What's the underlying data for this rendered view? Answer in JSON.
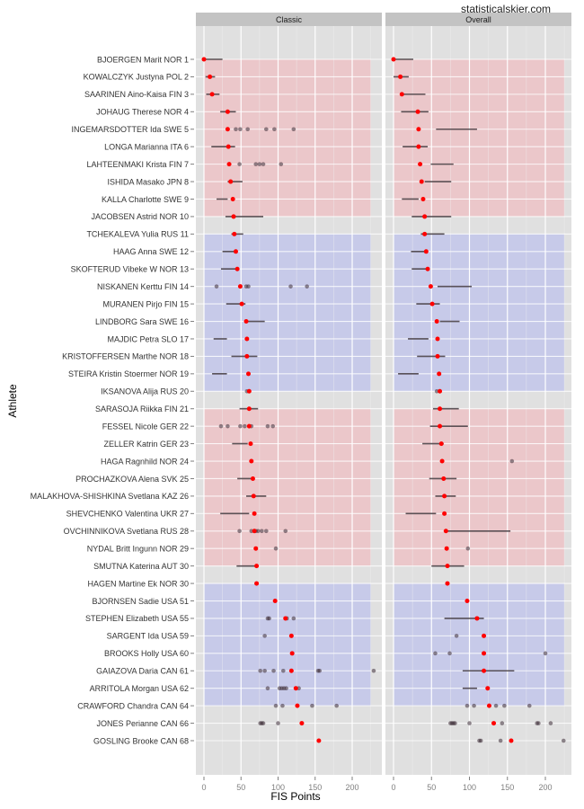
{
  "watermark": "statisticalskier.com",
  "chart_data": {
    "type": "scatter",
    "title": "",
    "xlabel": "FIS Points",
    "ylabel": "Athlete",
    "xlim": [
      -5,
      235
    ],
    "xticks": [
      0,
      50,
      100,
      150,
      200
    ],
    "xtick_labels": [
      "0",
      "50",
      "100",
      "150",
      "200"
    ],
    "grid": true,
    "legend": "none",
    "colors": {
      "current": "#ff0000",
      "band_red": "#f4b3b8",
      "band_blue": "#b3b8f0",
      "panel_bg": "#e0e0e0",
      "strip_bg": "#c3c3c3"
    },
    "panels": [
      "Classic",
      "Overall"
    ],
    "bands": [
      {
        "from_rank": 1,
        "to_rank": 10,
        "color": "red"
      },
      {
        "from_rank": 11,
        "to_rank": 20,
        "color": "blue"
      },
      {
        "from_rank": 21,
        "to_rank": 30,
        "color": "red"
      },
      {
        "from_rank": 31,
        "to_rank": 38,
        "color": "blue"
      }
    ],
    "band_xrange": [
      0,
      225
    ],
    "athletes": [
      {
        "name": "BJOERGEN Marit NOR 1",
        "classic": {
          "current": 0,
          "range": [
            0,
            25
          ],
          "points": []
        },
        "overall": {
          "current": 0,
          "range": [
            0,
            26
          ],
          "points": []
        }
      },
      {
        "name": "KOWALCZYK Justyna POL 2",
        "classic": {
          "current": 8,
          "range": [
            2,
            15
          ],
          "points": []
        },
        "overall": {
          "current": 9,
          "range": [
            0,
            20
          ],
          "points": []
        }
      },
      {
        "name": "SAARINEN Aino-Kaisa FIN 3",
        "classic": {
          "current": 11,
          "range": [
            3,
            21
          ],
          "points": []
        },
        "overall": {
          "current": 11,
          "range": [
            11,
            42
          ],
          "points": []
        }
      },
      {
        "name": "JOHAUG Therese NOR 4",
        "classic": {
          "current": 32,
          "range": [
            22,
            43
          ],
          "points": []
        },
        "overall": {
          "current": 32,
          "range": [
            10,
            46
          ],
          "points": []
        }
      },
      {
        "name": "INGEMARSDOTTER Ida SWE 5",
        "classic": {
          "current": 32,
          "range": null,
          "points": [
            43,
            49,
            59,
            84,
            95,
            121
          ]
        },
        "overall": {
          "current": 33,
          "range": [
            56,
            110
          ],
          "points": []
        }
      },
      {
        "name": "LONGA Marianna ITA 6",
        "classic": {
          "current": 33,
          "range": [
            10,
            42
          ],
          "points": []
        },
        "overall": {
          "current": 33,
          "range": [
            12,
            45
          ],
          "points": []
        }
      },
      {
        "name": "LAHTEENMAKI Krista FIN 7",
        "classic": {
          "current": 34,
          "range": null,
          "points": [
            48,
            70,
            75,
            80,
            104
          ]
        },
        "overall": {
          "current": 35,
          "range": [
            49,
            79
          ],
          "points": []
        }
      },
      {
        "name": "ISHIDA Masako JPN 8",
        "classic": {
          "current": 36,
          "range": [
            32,
            52
          ],
          "points": []
        },
        "overall": {
          "current": 37,
          "range": [
            41,
            76
          ],
          "points": []
        }
      },
      {
        "name": "KALLA Charlotte SWE 9",
        "classic": {
          "current": 39,
          "range": [
            17,
            32
          ],
          "points": []
        },
        "overall": {
          "current": 39,
          "range": [
            11,
            33
          ],
          "points": []
        }
      },
      {
        "name": "JACOBSEN Astrid NOR 10",
        "classic": {
          "current": 40,
          "range": [
            29,
            80
          ],
          "points": []
        },
        "overall": {
          "current": 41,
          "range": [
            24,
            76
          ],
          "points": []
        }
      },
      {
        "name": "TCHEKALEVA Yulia RUS 11",
        "classic": {
          "current": 41,
          "range": [
            37,
            53
          ],
          "points": []
        },
        "overall": {
          "current": 41,
          "range": [
            36,
            67
          ],
          "points": []
        }
      },
      {
        "name": "HAAG Anna SWE 12",
        "classic": {
          "current": 43,
          "range": [
            25,
            42
          ],
          "points": []
        },
        "overall": {
          "current": 43,
          "range": [
            23,
            43
          ],
          "points": []
        }
      },
      {
        "name": "SKOFTERUD Vibeke W NOR 13",
        "classic": {
          "current": 45,
          "range": [
            23,
            45
          ],
          "points": []
        },
        "overall": {
          "current": 45,
          "range": [
            24,
            45
          ],
          "points": []
        }
      },
      {
        "name": "NISKANEN Kerttu FIN 14",
        "classic": {
          "current": 49,
          "range": null,
          "points": [
            17,
            57,
            60,
            117,
            139
          ]
        },
        "overall": {
          "current": 49,
          "range": [
            58,
            103
          ],
          "points": []
        }
      },
      {
        "name": "MURANEN Pirjo FIN 15",
        "classic": {
          "current": 51,
          "range": [
            30,
            56
          ],
          "points": []
        },
        "overall": {
          "current": 51,
          "range": [
            30,
            61
          ],
          "points": []
        }
      },
      {
        "name": "LINDBORG Sara SWE 16",
        "classic": {
          "current": 57,
          "range": [
            57,
            82
          ],
          "points": []
        },
        "overall": {
          "current": 57,
          "range": [
            61,
            87
          ],
          "points": []
        }
      },
      {
        "name": "MAJDIC Petra SLO 17",
        "classic": {
          "current": 58,
          "range": [
            13,
            31
          ],
          "points": []
        },
        "overall": {
          "current": 58,
          "range": [
            19,
            46
          ],
          "points": []
        }
      },
      {
        "name": "KRISTOFFERSEN Marthe NOR 18",
        "classic": {
          "current": 58,
          "range": [
            37,
            72
          ],
          "points": []
        },
        "overall": {
          "current": 58,
          "range": [
            31,
            68
          ],
          "points": []
        }
      },
      {
        "name": "STEIRA Kristin Stoermer NOR 19",
        "classic": {
          "current": 60,
          "range": [
            11,
            31
          ],
          "points": []
        },
        "overall": {
          "current": 60,
          "range": [
            6,
            33
          ],
          "points": []
        }
      },
      {
        "name": "IKSANOVA Alija RUS 20",
        "classic": {
          "current": 61,
          "range": null,
          "points": [
            58
          ]
        },
        "overall": {
          "current": 61,
          "range": null,
          "points": [
            57
          ]
        }
      },
      {
        "name": "SARASOJA Riikka FIN 21",
        "classic": {
          "current": 61,
          "range": [
            48,
            73
          ],
          "points": []
        },
        "overall": {
          "current": 61,
          "range": [
            52,
            86
          ],
          "points": []
        }
      },
      {
        "name": "FESSEL Nicole GER 22",
        "classic": {
          "current": 61,
          "range": null,
          "points": [
            23,
            32,
            49,
            55,
            64,
            86,
            93
          ]
        },
        "overall": {
          "current": 61,
          "range": [
            48,
            98
          ],
          "points": []
        }
      },
      {
        "name": "ZELLER Katrin GER 23",
        "classic": {
          "current": 63,
          "range": [
            38,
            59
          ],
          "points": []
        },
        "overall": {
          "current": 63,
          "range": [
            38,
            66
          ],
          "points": []
        }
      },
      {
        "name": "HAGA Ragnhild NOR 24",
        "classic": {
          "current": 64,
          "range": null,
          "points": []
        },
        "overall": {
          "current": 64,
          "range": null,
          "points": [
            156
          ]
        }
      },
      {
        "name": "PROCHAZKOVA Alena SVK 25",
        "classic": {
          "current": 66,
          "range": [
            45,
            66
          ],
          "points": []
        },
        "overall": {
          "current": 66,
          "range": [
            47,
            83
          ],
          "points": []
        }
      },
      {
        "name": "MALAKHOVA-SHISHKINA Svetlana KAZ 26",
        "classic": {
          "current": 67,
          "range": [
            57,
            84
          ],
          "points": []
        },
        "overall": {
          "current": 67,
          "range": [
            55,
            82
          ],
          "points": []
        }
      },
      {
        "name": "SHEVCHENKO Valentina UKR 27",
        "classic": {
          "current": 68,
          "range": [
            22,
            61
          ],
          "points": []
        },
        "overall": {
          "current": 67,
          "range": [
            16,
            56
          ],
          "points": []
        }
      },
      {
        "name": "OVCHINNIKOVA Svetlana RUS 28",
        "classic": {
          "current": 68,
          "range": null,
          "points": [
            48,
            64,
            70,
            73,
            78,
            84,
            110
          ]
        },
        "overall": {
          "current": 69,
          "range": [
            69,
            154
          ],
          "points": []
        }
      },
      {
        "name": "NYDAL Britt Ingunn NOR 29",
        "classic": {
          "current": 70,
          "range": null,
          "points": [
            97
          ]
        },
        "overall": {
          "current": 70,
          "range": null,
          "points": [
            98
          ]
        }
      },
      {
        "name": "SMUTNA Katerina AUT 30",
        "classic": {
          "current": 71,
          "range": [
            44,
            71
          ],
          "points": []
        },
        "overall": {
          "current": 71,
          "range": [
            50,
            93
          ],
          "points": []
        }
      },
      {
        "name": "HAGEN Martine Ek NOR 30",
        "classic": {
          "current": 71,
          "range": null,
          "points": []
        },
        "overall": {
          "current": 71,
          "range": null,
          "points": []
        }
      },
      {
        "name": "BJORNSEN Sadie USA 51",
        "classic": {
          "current": 96,
          "range": null,
          "points": []
        },
        "overall": {
          "current": 97,
          "range": null,
          "points": []
        }
      },
      {
        "name": "STEPHEN Elizabeth USA 55",
        "classic": {
          "current": 110,
          "range": null,
          "points": [
            86,
            88,
            112,
            121
          ]
        },
        "overall": {
          "current": 110,
          "range": [
            67,
            119
          ],
          "points": []
        }
      },
      {
        "name": "SARGENT Ida USA 59",
        "classic": {
          "current": 118,
          "range": null,
          "points": [
            82
          ]
        },
        "overall": {
          "current": 119,
          "range": null,
          "points": [
            83
          ]
        }
      },
      {
        "name": "BROOKS Holly USA 60",
        "classic": {
          "current": 119,
          "range": null,
          "points": []
        },
        "overall": {
          "current": 119,
          "range": null,
          "points": [
            55,
            74,
            200
          ]
        }
      },
      {
        "name": "GAIAZOVA Daria CAN 61",
        "classic": {
          "current": 118,
          "range": null,
          "points": [
            76,
            82,
            94,
            107,
            154,
            156,
            229
          ]
        },
        "overall": {
          "current": 119,
          "range": [
            91,
            159
          ],
          "points": []
        }
      },
      {
        "name": "ARRITOLA Morgan USA 62",
        "classic": {
          "current": 124,
          "range": null,
          "points": [
            86,
            102,
            105,
            108,
            111,
            128
          ]
        },
        "overall": {
          "current": 124,
          "range": [
            91,
            110
          ],
          "points": []
        }
      },
      {
        "name": "CRAWFORD Chandra CAN 64",
        "classic": {
          "current": 126,
          "range": null,
          "points": [
            97,
            106,
            146,
            179
          ]
        },
        "overall": {
          "current": 126,
          "range": null,
          "points": [
            97,
            106,
            135,
            146,
            179
          ]
        }
      },
      {
        "name": "JONES Perianne CAN 66",
        "classic": {
          "current": 132,
          "range": null,
          "points": [
            76,
            78,
            80,
            100
          ]
        },
        "overall": {
          "current": 132,
          "range": null,
          "points": [
            75,
            77,
            79,
            81,
            100,
            143,
            189,
            191,
            207
          ]
        }
      },
      {
        "name": "GOSLING Brooke CAN 68",
        "classic": {
          "current": 155,
          "range": null,
          "points": []
        },
        "overall": {
          "current": 155,
          "range": null,
          "points": [
            113,
            115,
            141,
            224
          ]
        }
      }
    ]
  }
}
